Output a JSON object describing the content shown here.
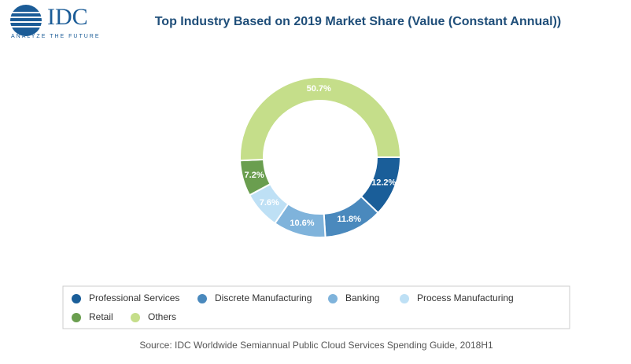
{
  "logo": {
    "name": "IDC",
    "tagline": "ANALYZE THE FUTURE"
  },
  "chart_data": {
    "type": "donut",
    "title": "Top Industry Based on 2019 Market Share (Value (Constant Annual))",
    "categories": [
      "Professional Services",
      "Discrete Manufacturing",
      "Banking",
      "Process Manufacturing",
      "Retail",
      "Others"
    ],
    "values": [
      12.2,
      11.8,
      10.6,
      7.6,
      7.2,
      50.7
    ],
    "value_labels": [
      "12.2%",
      "11.8%",
      "10.6%",
      "7.6%",
      "7.2%",
      "50.7%"
    ],
    "colors": [
      "#1a5e99",
      "#4a89bd",
      "#7fb3db",
      "#bee0f5",
      "#6a9e4f",
      "#c5de8a"
    ],
    "legend": "bottom",
    "source": "Source: IDC Worldwide Semiannual Public Cloud Services Spending Guide, 2018H1"
  }
}
